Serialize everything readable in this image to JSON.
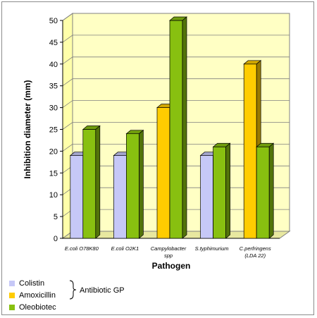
{
  "chart_data": {
    "type": "bar",
    "title": "",
    "xlabel": "Pathogen",
    "ylabel": "Inhibition diameter (mm)",
    "ylim": [
      0,
      50
    ],
    "yticks": [
      0,
      5,
      10,
      15,
      20,
      25,
      30,
      35,
      40,
      45,
      50
    ],
    "grid": true,
    "categories": [
      [
        "E.coli O78K80"
      ],
      [
        "E.coli O2K1"
      ],
      [
        "Campylobacter",
        "spp"
      ],
      [
        "S.typhimurium"
      ],
      [
        "C.perfringens",
        "(LDA 22)"
      ]
    ],
    "series": [
      {
        "name": "Colistin",
        "color": "#c6c8f7",
        "values": [
          19,
          19,
          null,
          19,
          null
        ]
      },
      {
        "name": "Amoxicillin",
        "color": "#ffcc00",
        "values": [
          null,
          null,
          30,
          null,
          40
        ]
      },
      {
        "name": "Oleobiotec",
        "color": "#88c010",
        "values": [
          25,
          24,
          50,
          21,
          21
        ]
      }
    ],
    "bar_pairs": [
      [
        "Colistin",
        "Oleobiotec"
      ],
      [
        "Colistin",
        "Oleobiotec"
      ],
      [
        "Amoxicillin",
        "Oleobiotec"
      ],
      [
        "Colistin",
        "Oleobiotec"
      ],
      [
        "Amoxicillin",
        "Oleobiotec"
      ]
    ],
    "legend": {
      "items": [
        "Colistin",
        "Amoxicillin",
        "Oleobiotec"
      ],
      "group_label": "Antibiotic GP",
      "placement": "bottom-left"
    }
  }
}
